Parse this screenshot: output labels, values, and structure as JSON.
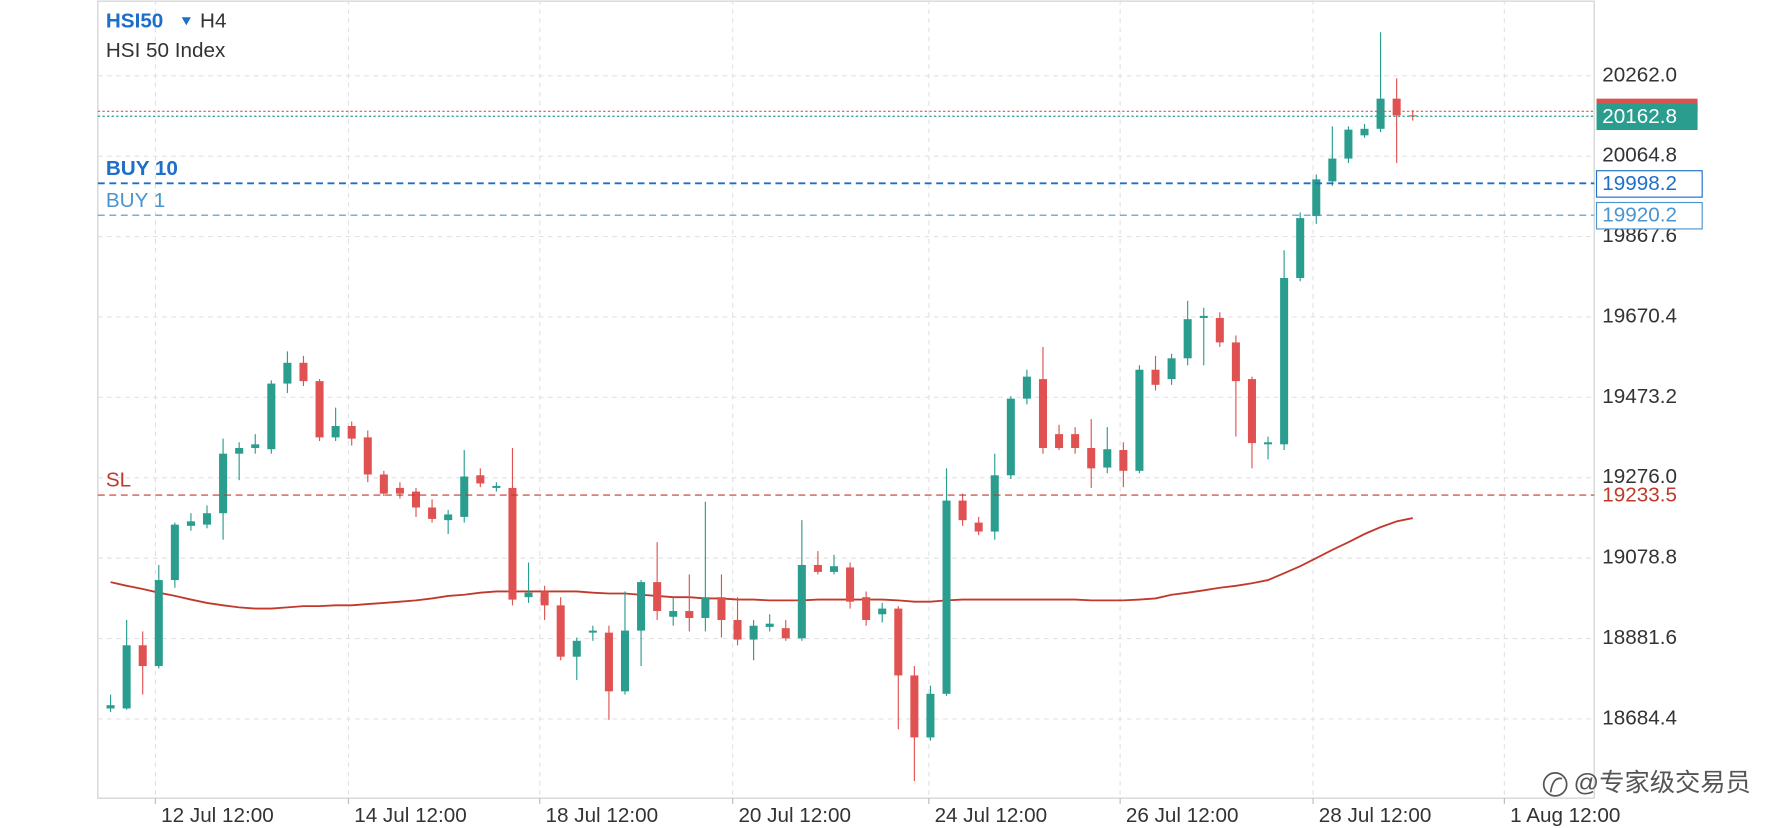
{
  "chart_data": {
    "type": "candlestick",
    "symbol": "HSI50",
    "timeframe": "H4",
    "title": "HSI 50 Index",
    "up_color": "#2a9d8f",
    "down_color": "#e05252",
    "open": [
      18710,
      18710,
      18865,
      18814,
      19025,
      19158,
      19161,
      19189,
      19335,
      19349,
      19346,
      19507,
      19558,
      19513,
      19375,
      19403,
      19375,
      19284,
      19251,
      19242,
      19203,
      19172,
      19180,
      19282,
      19251,
      19251,
      18983,
      18997,
      18963,
      18837,
      18896,
      18896,
      18752,
      18901,
      19020,
      18935,
      18949,
      18932,
      18983,
      18927,
      18879,
      18910,
      18907,
      18882,
      19062,
      19045,
      19056,
      18983,
      18941,
      18955,
      18791,
      18639,
      18746,
      19220,
      19166,
      19144,
      19282,
      19470,
      19518,
      19383,
      19383,
      19349,
      19301,
      19344,
      19293,
      19541,
      19518,
      19569,
      19668,
      19668,
      19608,
      19518,
      19358,
      19358,
      19766,
      19918,
      20003,
      20059,
      20116,
      20132,
      20206,
      20165
    ],
    "high": [
      18744,
      18927,
      18899,
      19062,
      19166,
      19189,
      19208,
      19372,
      19363,
      19383,
      19515,
      19586,
      19575,
      19518,
      19448,
      19414,
      19392,
      19293,
      19265,
      19251,
      19223,
      19197,
      19344,
      19299,
      19265,
      19349,
      19068,
      19011,
      18983,
      18884,
      18913,
      18913,
      18997,
      19025,
      19118,
      18983,
      19039,
      19217,
      19039,
      18983,
      18927,
      18941,
      18927,
      19172,
      19096,
      19087,
      19068,
      18997,
      18969,
      18961,
      18814,
      18766,
      19299,
      19237,
      19180,
      19335,
      19476,
      19541,
      19597,
      19406,
      19400,
      19420,
      19400,
      19363,
      19552,
      19575,
      19580,
      19710,
      19693,
      19682,
      19625,
      19524,
      19377,
      19834,
      19927,
      20020,
      20138,
      20138,
      20144,
      20369,
      20256,
      20178
    ],
    "low": [
      18701,
      18707,
      18744,
      18808,
      19006,
      19146,
      19152,
      19124,
      19270,
      19335,
      19335,
      19484,
      19501,
      19366,
      19366,
      19355,
      19265,
      19231,
      19225,
      19180,
      19166,
      19138,
      19166,
      19253,
      19242,
      18963,
      18969,
      18927,
      18828,
      18780,
      18876,
      18682,
      18744,
      18814,
      18927,
      18913,
      18899,
      18899,
      18884,
      18865,
      18828,
      18899,
      18876,
      18876,
      19039,
      19039,
      18955,
      18913,
      18921,
      18659,
      18532,
      18631,
      18741,
      19158,
      19135,
      19124,
      19273,
      19456,
      19335,
      19344,
      19335,
      19251,
      19287,
      19253,
      19287,
      19490,
      19504,
      19552,
      19552,
      19597,
      19377,
      19299,
      19321,
      19344,
      19758,
      19899,
      19992,
      20048,
      20110,
      20124,
      20048,
      20152
    ],
    "close": [
      18718,
      18865,
      18814,
      19025,
      19161,
      19169,
      19189,
      19335,
      19349,
      19358,
      19507,
      19558,
      19513,
      19375,
      19403,
      19372,
      19284,
      19237,
      19237,
      19203,
      19175,
      19186,
      19279,
      19262,
      19256,
      18977,
      18994,
      18963,
      18837,
      18876,
      18901,
      18752,
      18901,
      19020,
      18949,
      18949,
      18932,
      18983,
      18927,
      18879,
      18913,
      18918,
      18882,
      19062,
      19045,
      19059,
      18972,
      18927,
      18955,
      18791,
      18639,
      18746,
      19220,
      19172,
      19144,
      19282,
      19470,
      19524,
      19349,
      19349,
      19349,
      19299,
      19346,
      19293,
      19541,
      19504,
      19569,
      19665,
      19673,
      19608,
      19513,
      19361,
      19363,
      19766,
      19913,
      20008,
      20059,
      20130,
      20132,
      20206,
      20165,
      20162.8
    ],
    "ma": {
      "color": "#c0392b",
      "values": [
        19020,
        19011,
        19003,
        18994,
        18986,
        18977,
        18969,
        18963,
        18958,
        18955,
        18955,
        18958,
        18961,
        18961,
        18963,
        18963,
        18966,
        18969,
        18972,
        18975,
        18980,
        18986,
        18989,
        18994,
        18997,
        18997,
        18997,
        18997,
        18997,
        18997,
        18994,
        18992,
        18992,
        18989,
        18986,
        18983,
        18983,
        18980,
        18980,
        18977,
        18977,
        18975,
        18975,
        18975,
        18977,
        18977,
        18977,
        18977,
        18977,
        18975,
        18972,
        18972,
        18975,
        18977,
        18977,
        18977,
        18977,
        18977,
        18977,
        18977,
        18977,
        18975,
        18975,
        18975,
        18977,
        18980,
        18989,
        18994,
        19000,
        19006,
        19011,
        19017,
        19025,
        19042,
        19059,
        19079,
        19099,
        19118,
        19138,
        19155,
        19169,
        19177
      ]
    },
    "xlim": [
      -0.79,
      92.29
    ],
    "xticks": [
      {
        "value": 2.79,
        "label": "12 Jul 12:00"
      },
      {
        "value": 14.8,
        "label": "14 Jul 12:00"
      },
      {
        "value": 26.7,
        "label": "18 Jul 12:00"
      },
      {
        "value": 38.7,
        "label": "20 Jul 12:00"
      },
      {
        "value": 50.9,
        "label": "24 Jul 12:00"
      },
      {
        "value": 62.8,
        "label": "26 Jul 12:00"
      },
      {
        "value": 74.8,
        "label": "28 Jul 12:00"
      },
      {
        "value": 86.7,
        "label": "1 Aug 12:00"
      }
    ],
    "ylim": [
      18490,
      20448
    ],
    "yticks": [
      18684.4,
      18881.6,
      19078.8,
      {
        "value": 19276,
        "label": "19276.0"
      },
      19473.2,
      19670.4,
      19867.6,
      20064.8,
      {
        "value": 20262,
        "label": "20262.0"
      }
    ],
    "grid": true,
    "levels": [
      {
        "name": "BUY 10",
        "value": 19998.2,
        "color": "#1d6fc9"
      },
      {
        "name": "BUY 1",
        "value": 19920.2,
        "color": "#4a95cf"
      },
      {
        "name": "SL",
        "value": 19233.5,
        "color": "#c0392b"
      }
    ],
    "bid": {
      "value": 20162.8,
      "color": "#2a9d8f"
    },
    "ask": {
      "value": 20175,
      "color": "#d9534f"
    }
  },
  "watermark": "@专家级交易员"
}
